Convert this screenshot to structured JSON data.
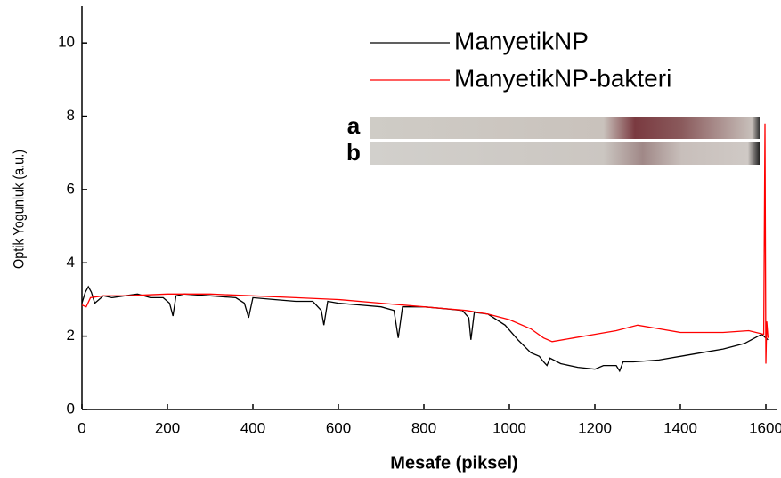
{
  "chart_data": {
    "type": "line",
    "xlabel": "Mesafe (piksel)",
    "ylabel": "Optik Yogunluk (a.u.)",
    "xlim": [
      0,
      1625
    ],
    "ylim": [
      0,
      11
    ],
    "xticks": [
      0,
      200,
      400,
      600,
      800,
      1000,
      1200,
      1400,
      1600
    ],
    "yticks": [
      0,
      2,
      4,
      6,
      8,
      10
    ],
    "strip_labels": [
      "a",
      "b"
    ],
    "legend": "upper right",
    "series": [
      {
        "name": "ManyetikNP",
        "color": "#000000",
        "x": [
          0,
          8,
          15,
          22,
          30,
          40,
          50,
          70,
          100,
          130,
          160,
          190,
          205,
          213,
          220,
          240,
          300,
          360,
          380,
          390,
          400,
          450,
          500,
          540,
          560,
          566,
          575,
          600,
          650,
          700,
          730,
          740,
          750,
          800,
          850,
          890,
          905,
          910,
          918,
          950,
          990,
          1020,
          1050,
          1070,
          1080,
          1088,
          1095,
          1120,
          1160,
          1200,
          1220,
          1250,
          1258,
          1266,
          1290,
          1350,
          1400,
          1450,
          1500,
          1550,
          1590,
          1605
        ],
        "values": [
          2.9,
          3.2,
          3.35,
          3.2,
          2.9,
          3.0,
          3.1,
          3.05,
          3.1,
          3.15,
          3.05,
          3.05,
          2.9,
          2.55,
          3.1,
          3.15,
          3.1,
          3.05,
          2.9,
          2.5,
          3.05,
          3.0,
          2.95,
          2.95,
          2.7,
          2.3,
          2.95,
          2.9,
          2.85,
          2.8,
          2.7,
          1.95,
          2.8,
          2.8,
          2.75,
          2.7,
          2.5,
          1.9,
          2.65,
          2.6,
          2.3,
          1.9,
          1.55,
          1.45,
          1.3,
          1.2,
          1.4,
          1.25,
          1.15,
          1.1,
          1.2,
          1.2,
          1.05,
          1.3,
          1.3,
          1.35,
          1.45,
          1.55,
          1.65,
          1.8,
          2.05,
          1.9
        ]
      },
      {
        "name": "ManyetikNP-bakteri",
        "color": "#ff0000",
        "x": [
          0,
          10,
          20,
          50,
          100,
          200,
          300,
          400,
          500,
          600,
          700,
          800,
          900,
          950,
          1000,
          1050,
          1080,
          1100,
          1150,
          1200,
          1250,
          1300,
          1350,
          1400,
          1500,
          1560,
          1595,
          1598,
          1600,
          1602,
          1605
        ],
        "values": [
          2.85,
          2.8,
          3.05,
          3.1,
          3.1,
          3.15,
          3.15,
          3.1,
          3.05,
          3.0,
          2.9,
          2.8,
          2.7,
          2.6,
          2.45,
          2.2,
          1.95,
          1.85,
          1.95,
          2.05,
          2.15,
          2.3,
          2.2,
          2.1,
          2.1,
          2.15,
          2.05,
          7.8,
          1.25,
          2.4,
          1.95
        ]
      }
    ]
  }
}
